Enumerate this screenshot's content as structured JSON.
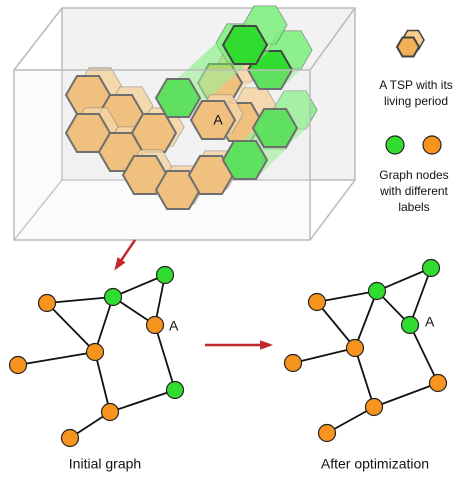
{
  "box": {
    "label": "A"
  },
  "legend": {
    "tsp": [
      "A TSP with its",
      "living period"
    ],
    "nodes": [
      "Graph nodes",
      "with different",
      "labels"
    ]
  },
  "graphs": [
    {
      "caption": "Initial graph",
      "node_label": "A"
    },
    {
      "caption": "After optimization",
      "node_label": "A"
    }
  ]
}
